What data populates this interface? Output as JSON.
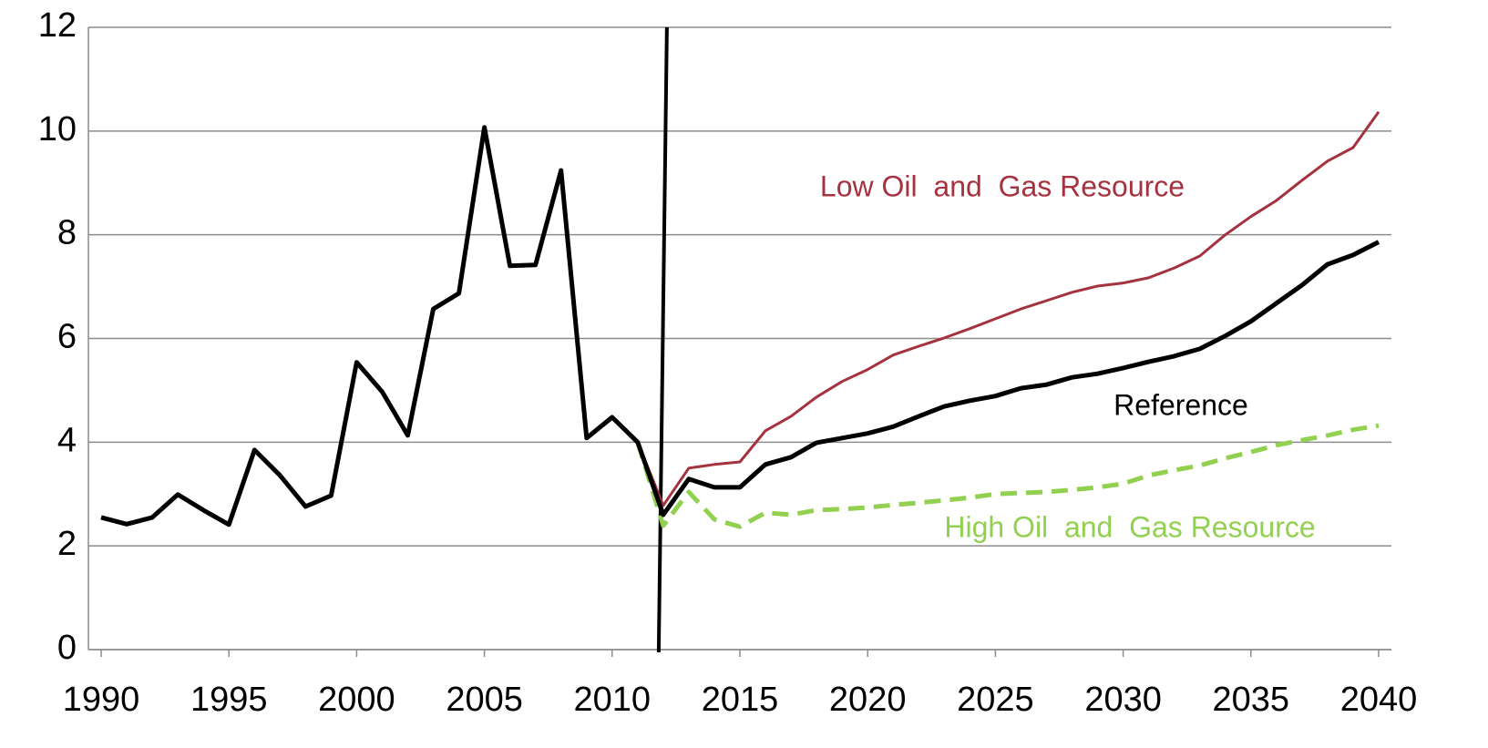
{
  "chart_data": {
    "type": "line",
    "x": [
      1990,
      1991,
      1992,
      1993,
      1994,
      1995,
      1996,
      1997,
      1998,
      1999,
      2000,
      2001,
      2002,
      2003,
      2004,
      2005,
      2006,
      2007,
      2008,
      2009,
      2010,
      2011,
      2012,
      2013,
      2014,
      2015,
      2016,
      2017,
      2018,
      2019,
      2020,
      2021,
      2022,
      2023,
      2024,
      2025,
      2026,
      2027,
      2028,
      2029,
      2030,
      2031,
      2032,
      2033,
      2034,
      2035,
      2036,
      2037,
      2038,
      2039,
      2040
    ],
    "series": [
      {
        "name": "Low Oil  and  Gas Resource",
        "color": "#a5323f",
        "width": 3,
        "dashed": false,
        "values": [
          null,
          null,
          null,
          null,
          null,
          null,
          null,
          null,
          null,
          null,
          null,
          null,
          null,
          null,
          null,
          null,
          null,
          null,
          null,
          null,
          null,
          4.0,
          2.78,
          3.5,
          3.57,
          3.62,
          4.22,
          4.5,
          4.87,
          5.17,
          5.4,
          5.68,
          5.85,
          6.01,
          6.19,
          6.38,
          6.57,
          6.73,
          6.89,
          7.01,
          7.07,
          7.17,
          7.36,
          7.59,
          8.0,
          8.35,
          8.66,
          9.05,
          9.42,
          9.68,
          10.37
        ]
      },
      {
        "name": "High Oil  and  Gas Resource",
        "color": "#92d050",
        "width": 5,
        "dashed": true,
        "values": [
          null,
          null,
          null,
          null,
          null,
          null,
          null,
          null,
          null,
          null,
          null,
          null,
          null,
          null,
          null,
          null,
          null,
          null,
          null,
          null,
          null,
          4.0,
          2.39,
          3.04,
          2.51,
          2.37,
          2.64,
          2.6,
          2.69,
          2.71,
          2.74,
          2.79,
          2.83,
          2.88,
          2.93,
          3.0,
          3.02,
          3.04,
          3.08,
          3.13,
          3.2,
          3.36,
          3.46,
          3.55,
          3.69,
          3.81,
          3.94,
          4.04,
          4.13,
          4.24,
          4.32
        ]
      },
      {
        "name": "Reference",
        "color": "#000000",
        "width": 5,
        "dashed": false,
        "values": [
          2.55,
          2.42,
          2.55,
          2.99,
          2.69,
          2.41,
          3.85,
          3.36,
          2.76,
          2.97,
          5.54,
          4.97,
          4.13,
          6.57,
          6.87,
          10.07,
          7.4,
          7.42,
          9.24,
          4.08,
          4.48,
          4.0,
          2.6,
          3.29,
          3.13,
          3.13,
          3.57,
          3.71,
          3.99,
          4.08,
          4.17,
          4.3,
          4.5,
          4.69,
          4.8,
          4.89,
          5.04,
          5.11,
          5.25,
          5.32,
          5.43,
          5.55,
          5.66,
          5.8,
          6.05,
          6.33,
          6.68,
          7.03,
          7.43,
          7.61,
          7.86
        ]
      }
    ],
    "vline": 2012,
    "xlim": [
      1989.5,
      2040.5
    ],
    "xticks": [
      1990,
      1995,
      2000,
      2005,
      2010,
      2015,
      2020,
      2025,
      2030,
      2035,
      2040
    ],
    "ylim": [
      0,
      12
    ],
    "yticks": [
      0,
      2,
      4,
      6,
      8,
      10,
      12
    ],
    "grid": true
  }
}
